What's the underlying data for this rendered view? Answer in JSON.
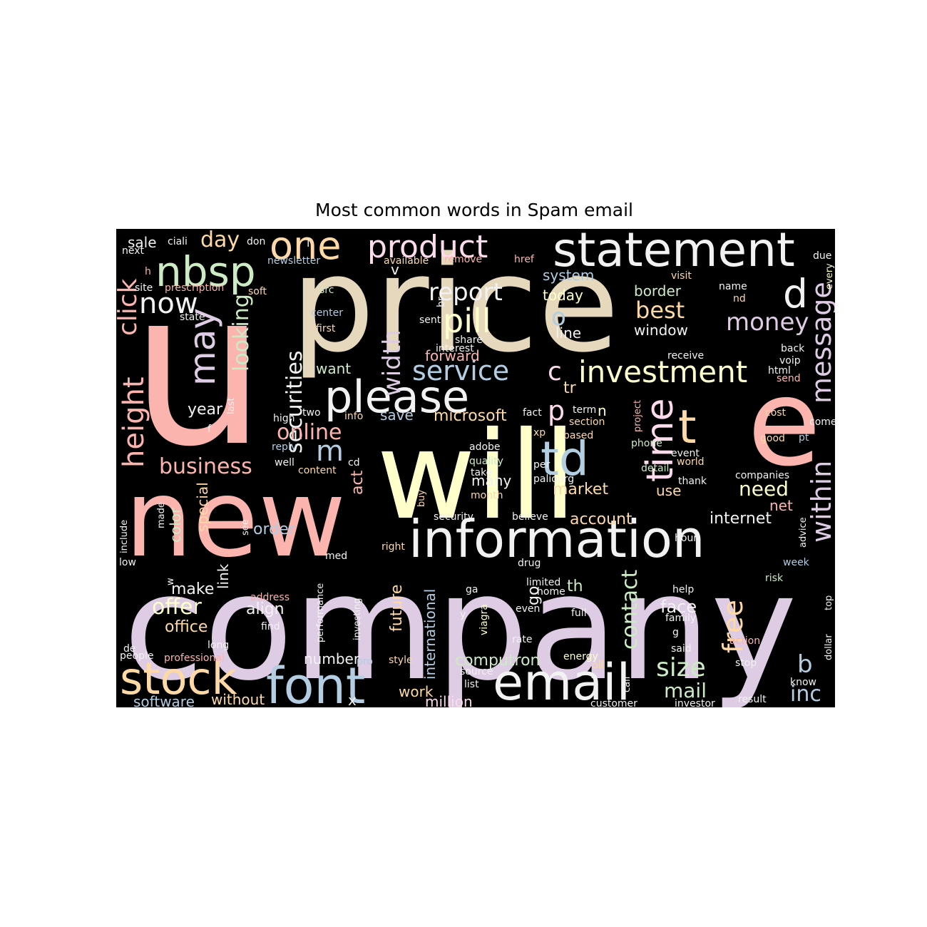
{
  "title": "Most common words in Spam email",
  "background": "#000000",
  "palette": [
    "#fbb4ae",
    "#b3cde3",
    "#ccebc5",
    "#decbe4",
    "#fed9a6",
    "#ffffcc",
    "#e5d8bd",
    "#fddaec",
    "#f2f2f2"
  ],
  "words": [
    {
      "t": "u",
      "c": "#fbb4ae"
    },
    {
      "t": "price",
      "c": "#e5d8bd"
    },
    {
      "t": "new",
      "c": "#fbb4ae"
    },
    {
      "t": "company",
      "c": "#decbe4"
    },
    {
      "t": "will",
      "c": "#ffffcc"
    },
    {
      "t": "e",
      "c": "#fbb4ae"
    },
    {
      "t": "information",
      "c": "#f2f2f2"
    },
    {
      "t": "statement",
      "c": "#f2f2f2"
    },
    {
      "t": "email",
      "c": "#f2f2f2"
    },
    {
      "t": "font",
      "c": "#b3cde3"
    },
    {
      "t": "stock",
      "c": "#fed9a6"
    },
    {
      "t": "please",
      "c": "#f2f2f2"
    },
    {
      "t": "td",
      "c": "#b3cde3"
    },
    {
      "t": "nbsp",
      "c": "#ccebc5"
    },
    {
      "t": "one",
      "c": "#fed9a6"
    },
    {
      "t": "product",
      "c": "#fddaec"
    },
    {
      "t": "may",
      "c": "#decbe4"
    },
    {
      "t": "time",
      "c": "#fddaec"
    },
    {
      "t": "investment",
      "c": "#ffffcc"
    },
    {
      "t": "d",
      "c": "#f2f2f2"
    },
    {
      "t": "t",
      "c": "#fed9a6"
    },
    {
      "t": "height",
      "c": "#fbb4ae"
    },
    {
      "t": "click",
      "c": "#fbb4ae"
    },
    {
      "t": "now",
      "c": "#f2f2f2"
    },
    {
      "t": "pill",
      "c": "#ffffcc"
    },
    {
      "t": "service",
      "c": "#b3cde3"
    },
    {
      "t": "report",
      "c": "#f2f2f2"
    },
    {
      "t": "width",
      "c": "#decbe4"
    },
    {
      "t": "securities",
      "c": "#f2f2f2"
    },
    {
      "t": "looking",
      "c": "#ccebc5"
    },
    {
      "t": "message",
      "c": "#decbe4"
    },
    {
      "t": "within",
      "c": "#decbe4"
    },
    {
      "t": "money",
      "c": "#decbe4"
    },
    {
      "t": "best",
      "c": "#fed9a6"
    },
    {
      "t": "business",
      "c": "#fbb4ae"
    },
    {
      "t": "online",
      "c": "#fbb4ae"
    },
    {
      "t": "size",
      "c": "#ccebc5"
    },
    {
      "t": "free",
      "c": "#fed9a6"
    },
    {
      "t": "contact",
      "c": "#ccebc5"
    },
    {
      "t": "offer",
      "c": "#ffffcc"
    },
    {
      "t": "day",
      "c": "#fed9a6"
    },
    {
      "t": "m",
      "c": "#b3cde3"
    },
    {
      "t": "c",
      "c": "#fddaec"
    },
    {
      "t": "o",
      "c": "#b3cde3"
    },
    {
      "t": "p",
      "c": "#fddaec"
    },
    {
      "t": "b",
      "c": "#b3cde3"
    },
    {
      "t": "need",
      "c": "#ffffcc"
    },
    {
      "t": "inc",
      "c": "#b3cde3"
    },
    {
      "t": "mail",
      "c": "#ccebc5"
    },
    {
      "t": "face",
      "c": "#f2f2f2"
    },
    {
      "t": "computron",
      "c": "#ccebc5"
    },
    {
      "t": "account",
      "c": "#fed9a6"
    },
    {
      "t": "internet",
      "c": "#f2f2f2"
    },
    {
      "t": "market",
      "c": "#fed9a6"
    },
    {
      "t": "order",
      "c": "#b3cde3"
    },
    {
      "t": "align",
      "c": "#f2f2f2"
    },
    {
      "t": "make",
      "c": "#f2f2f2"
    },
    {
      "t": "office",
      "c": "#fed9a6"
    },
    {
      "t": "year",
      "c": "#f2f2f2"
    },
    {
      "t": "want",
      "c": "#ccebc5"
    },
    {
      "t": "save",
      "c": "#b3cde3"
    },
    {
      "t": "microsoft",
      "c": "#fed9a6"
    },
    {
      "t": "forward",
      "c": "#fbb4ae"
    },
    {
      "t": "border",
      "c": "#ccebc5"
    },
    {
      "t": "window",
      "c": "#f2f2f2"
    },
    {
      "t": "system",
      "c": "#b3cde3"
    },
    {
      "t": "today",
      "c": "#ffffcc"
    },
    {
      "t": "line",
      "c": "#f2f2f2"
    },
    {
      "t": "sale",
      "c": "#f2f2f2"
    },
    {
      "t": "many",
      "c": "#f2f2f2"
    },
    {
      "t": "use",
      "c": "#fed9a6"
    },
    {
      "t": "net",
      "c": "#fbb4ae"
    },
    {
      "t": "number",
      "c": "#f2f2f2"
    },
    {
      "t": "work",
      "c": "#fed9a6"
    },
    {
      "t": "million",
      "c": "#fddaec"
    },
    {
      "t": "software",
      "c": "#b3cde3"
    },
    {
      "t": "without",
      "c": "#fed9a6"
    },
    {
      "t": "future",
      "c": "#fed9a6"
    },
    {
      "t": "international",
      "c": "#b3cde3"
    },
    {
      "t": "special",
      "c": "#fed9a6"
    },
    {
      "t": "color",
      "c": "#ccebc5"
    },
    {
      "t": "link",
      "c": "#f2f2f2"
    },
    {
      "t": "act",
      "c": "#fbb4ae"
    },
    {
      "t": "go",
      "c": "#f2f2f2"
    },
    {
      "t": "th",
      "c": "#ccebc5"
    },
    {
      "t": "v",
      "c": "#f2f2f2"
    },
    {
      "t": "tr",
      "c": "#fed9a6"
    },
    {
      "t": "n",
      "c": "#ffffcc"
    },
    {
      "t": "x",
      "c": "#f2f2f2"
    },
    {
      "t": "ciali",
      "c": "#f2f2f2"
    },
    {
      "t": "don",
      "c": "#f2f2f2"
    },
    {
      "t": "l",
      "c": "#f2f2f2"
    },
    {
      "t": "next",
      "c": "#f2f2f2"
    },
    {
      "t": "newsletter",
      "c": "#b3cde3"
    },
    {
      "t": "available",
      "c": "#fed9a6"
    },
    {
      "t": "remove",
      "c": "#fbb4ae"
    },
    {
      "t": "href",
      "c": "#fbb4ae"
    },
    {
      "t": "due",
      "c": "#f2f2f2"
    },
    {
      "t": "every",
      "c": "#ffffcc"
    },
    {
      "t": "h",
      "c": "#fbb4ae"
    },
    {
      "t": "site",
      "c": "#f2f2f2"
    },
    {
      "t": "prescription",
      "c": "#fbb4ae"
    },
    {
      "t": "soft",
      "c": "#fed9a6"
    },
    {
      "t": "src",
      "c": "#ccebc5"
    },
    {
      "t": "center",
      "c": "#b3cde3"
    },
    {
      "t": "first",
      "c": "#fed9a6"
    },
    {
      "t": "state",
      "c": "#f2f2f2"
    },
    {
      "t": "sent",
      "c": "#f2f2f2"
    },
    {
      "t": "br",
      "c": "#f2f2f2"
    },
    {
      "t": "share",
      "c": "#f2f2f2"
    },
    {
      "t": "interest",
      "c": "#f2f2f2"
    },
    {
      "t": "visit",
      "c": "#fed9a6"
    },
    {
      "t": "name",
      "c": "#f2f2f2"
    },
    {
      "t": "nd",
      "c": "#fed9a6"
    },
    {
      "t": "receive",
      "c": "#f2f2f2"
    },
    {
      "t": "back",
      "c": "#f2f2f2"
    },
    {
      "t": "voip",
      "c": "#f2f2f2"
    },
    {
      "t": "html",
      "c": "#f2f2f2"
    },
    {
      "t": "send",
      "c": "#fbb4ae"
    },
    {
      "t": "cost",
      "c": "#fed9a6"
    },
    {
      "t": "come",
      "c": "#f2f2f2"
    },
    {
      "t": "good",
      "c": "#fed9a6"
    },
    {
      "t": "pt",
      "c": "#b3cde3"
    },
    {
      "t": "two",
      "c": "#f2f2f2"
    },
    {
      "t": "info",
      "c": "#fed9a6"
    },
    {
      "t": "high",
      "c": "#f2f2f2"
    },
    {
      "t": "last",
      "c": "#f2f2f2"
    },
    {
      "t": "f",
      "c": "#f2f2f2"
    },
    {
      "t": "fact",
      "c": "#f2f2f2"
    },
    {
      "t": "term",
      "c": "#f2f2f2"
    },
    {
      "t": "section",
      "c": "#fed9a6"
    },
    {
      "t": "based",
      "c": "#fed9a6"
    },
    {
      "t": "project",
      "c": "#fbb4ae"
    },
    {
      "t": "xp",
      "c": "#fed9a6"
    },
    {
      "t": "phone",
      "c": "#ccebc5"
    },
    {
      "t": "event",
      "c": "#f2f2f2"
    },
    {
      "t": "world",
      "c": "#fed9a6"
    },
    {
      "t": "reply",
      "c": "#b3cde3"
    },
    {
      "t": "well",
      "c": "#f2f2f2"
    },
    {
      "t": "content",
      "c": "#fed9a6"
    },
    {
      "t": "cd",
      "c": "#f2f2f2"
    },
    {
      "t": "adobe",
      "c": "#f2f2f2"
    },
    {
      "t": "quality",
      "c": "#ccebc5"
    },
    {
      "t": "take",
      "c": "#f2f2f2"
    },
    {
      "t": "month",
      "c": "#fed9a6"
    },
    {
      "t": "per",
      "c": "#f2f2f2"
    },
    {
      "t": "paliourg",
      "c": "#f2f2f2"
    },
    {
      "t": "detail",
      "c": "#ccebc5"
    },
    {
      "t": "thank",
      "c": "#f2f2f2"
    },
    {
      "t": "companies",
      "c": "#f2f2f2"
    },
    {
      "t": "buy",
      "c": "#fed9a6"
    },
    {
      "t": "security",
      "c": "#f2f2f2"
    },
    {
      "t": "believe",
      "c": "#f2f2f2"
    },
    {
      "t": "hour",
      "c": "#f2f2f2"
    },
    {
      "t": "advice",
      "c": "#f2f2f2"
    },
    {
      "t": "include",
      "c": "#f2f2f2"
    },
    {
      "t": "made",
      "c": "#f2f2f2"
    },
    {
      "t": "see",
      "c": "#f2f2f2"
    },
    {
      "t": "low",
      "c": "#f2f2f2"
    },
    {
      "t": "med",
      "c": "#f2f2f2"
    },
    {
      "t": "right",
      "c": "#fed9a6"
    },
    {
      "t": "drug",
      "c": "#f2f2f2"
    },
    {
      "t": "week",
      "c": "#b3cde3"
    },
    {
      "t": "risk",
      "c": "#ccebc5"
    },
    {
      "t": "w",
      "c": "#f2f2f2"
    },
    {
      "t": "address",
      "c": "#fbb4ae"
    },
    {
      "t": "find",
      "c": "#f2f2f2"
    },
    {
      "t": "performance",
      "c": "#f2f2f2"
    },
    {
      "t": "investing",
      "c": "#f2f2f2"
    },
    {
      "t": "ga",
      "c": "#f2f2f2"
    },
    {
      "t": "y",
      "c": "#f2f2f2"
    },
    {
      "t": "viagra",
      "c": "#ffffcc"
    },
    {
      "t": "limited",
      "c": "#f2f2f2"
    },
    {
      "t": "home",
      "c": "#f2f2f2"
    },
    {
      "t": "even",
      "c": "#f2f2f2"
    },
    {
      "t": "full",
      "c": "#f2f2f2"
    },
    {
      "t": "help",
      "c": "#f2f2f2"
    },
    {
      "t": "family",
      "c": "#f2f2f2"
    },
    {
      "t": "top",
      "c": "#f2f2f2"
    },
    {
      "t": "dollar",
      "c": "#f2f2f2"
    },
    {
      "t": "g",
      "c": "#f2f2f2"
    },
    {
      "t": "rate",
      "c": "#f2f2f2"
    },
    {
      "t": "said",
      "c": "#f2f2f2"
    },
    {
      "t": "action",
      "c": "#fbb4ae"
    },
    {
      "t": "de",
      "c": "#f2f2f2"
    },
    {
      "t": "long",
      "c": "#f2f2f2"
    },
    {
      "t": "people",
      "c": "#f2f2f2"
    },
    {
      "t": "professional",
      "c": "#fbb4ae"
    },
    {
      "t": "pro",
      "c": "#b3cde3"
    },
    {
      "t": "style",
      "c": "#fed9a6"
    },
    {
      "t": "energy",
      "c": "#ffffcc"
    },
    {
      "t": "oil",
      "c": "#fed9a6"
    },
    {
      "t": "source",
      "c": "#f2f2f2"
    },
    {
      "t": "list",
      "c": "#f2f2f2"
    },
    {
      "t": "call",
      "c": "#f2f2f2"
    },
    {
      "t": "stop",
      "c": "#f2f2f2"
    },
    {
      "t": "know",
      "c": "#f2f2f2"
    },
    {
      "t": "customer",
      "c": "#f2f2f2"
    },
    {
      "t": "investor",
      "c": "#f2f2f2"
    },
    {
      "t": "result",
      "c": "#f2f2f2"
    }
  ]
}
